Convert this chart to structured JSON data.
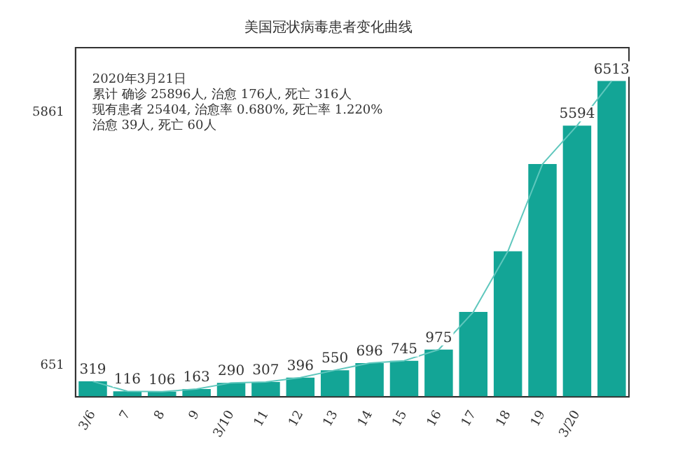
{
  "chart_data": {
    "type": "bar",
    "title": "美国冠状病毒患者变化曲线",
    "categories": [
      "3/6",
      "7",
      "8",
      "9",
      "3/10",
      "11",
      "12",
      "13",
      "14",
      "15",
      "16",
      "17",
      "18",
      "19",
      "3/20",
      null
    ],
    "series": [
      {
        "color": "#13a596",
        "values": [
          319,
          116,
          106,
          163,
          290,
          307,
          396,
          550,
          696,
          745,
          975,
          1750,
          3000,
          4800,
          5594,
          6513
        ],
        "value_labels": [
          "319",
          "116",
          "106",
          "163",
          "290",
          "307",
          "396",
          "550",
          "696",
          "745",
          "975",
          null,
          null,
          null,
          "5594",
          "6513"
        ]
      },
      {
        "type": "line",
        "color": "#5fc7bd",
        "values": [
          319,
          116,
          106,
          163,
          290,
          307,
          396,
          550,
          696,
          745,
          975,
          1750,
          3000,
          4800,
          5594,
          6513
        ]
      }
    ],
    "ylim": [
      0,
      7200
    ],
    "yticks": [
      651,
      5861
    ],
    "grid": false,
    "legend": false,
    "marker": "none",
    "annotations": [
      "2020年3月21日",
      "累计 确诊 25896人, 治愈 176人, 死亡 316人",
      "现有患者 25404, 治愈率 0.680%, 死亡率 1.220%",
      "治愈 39人, 死亡 60人"
    ]
  }
}
